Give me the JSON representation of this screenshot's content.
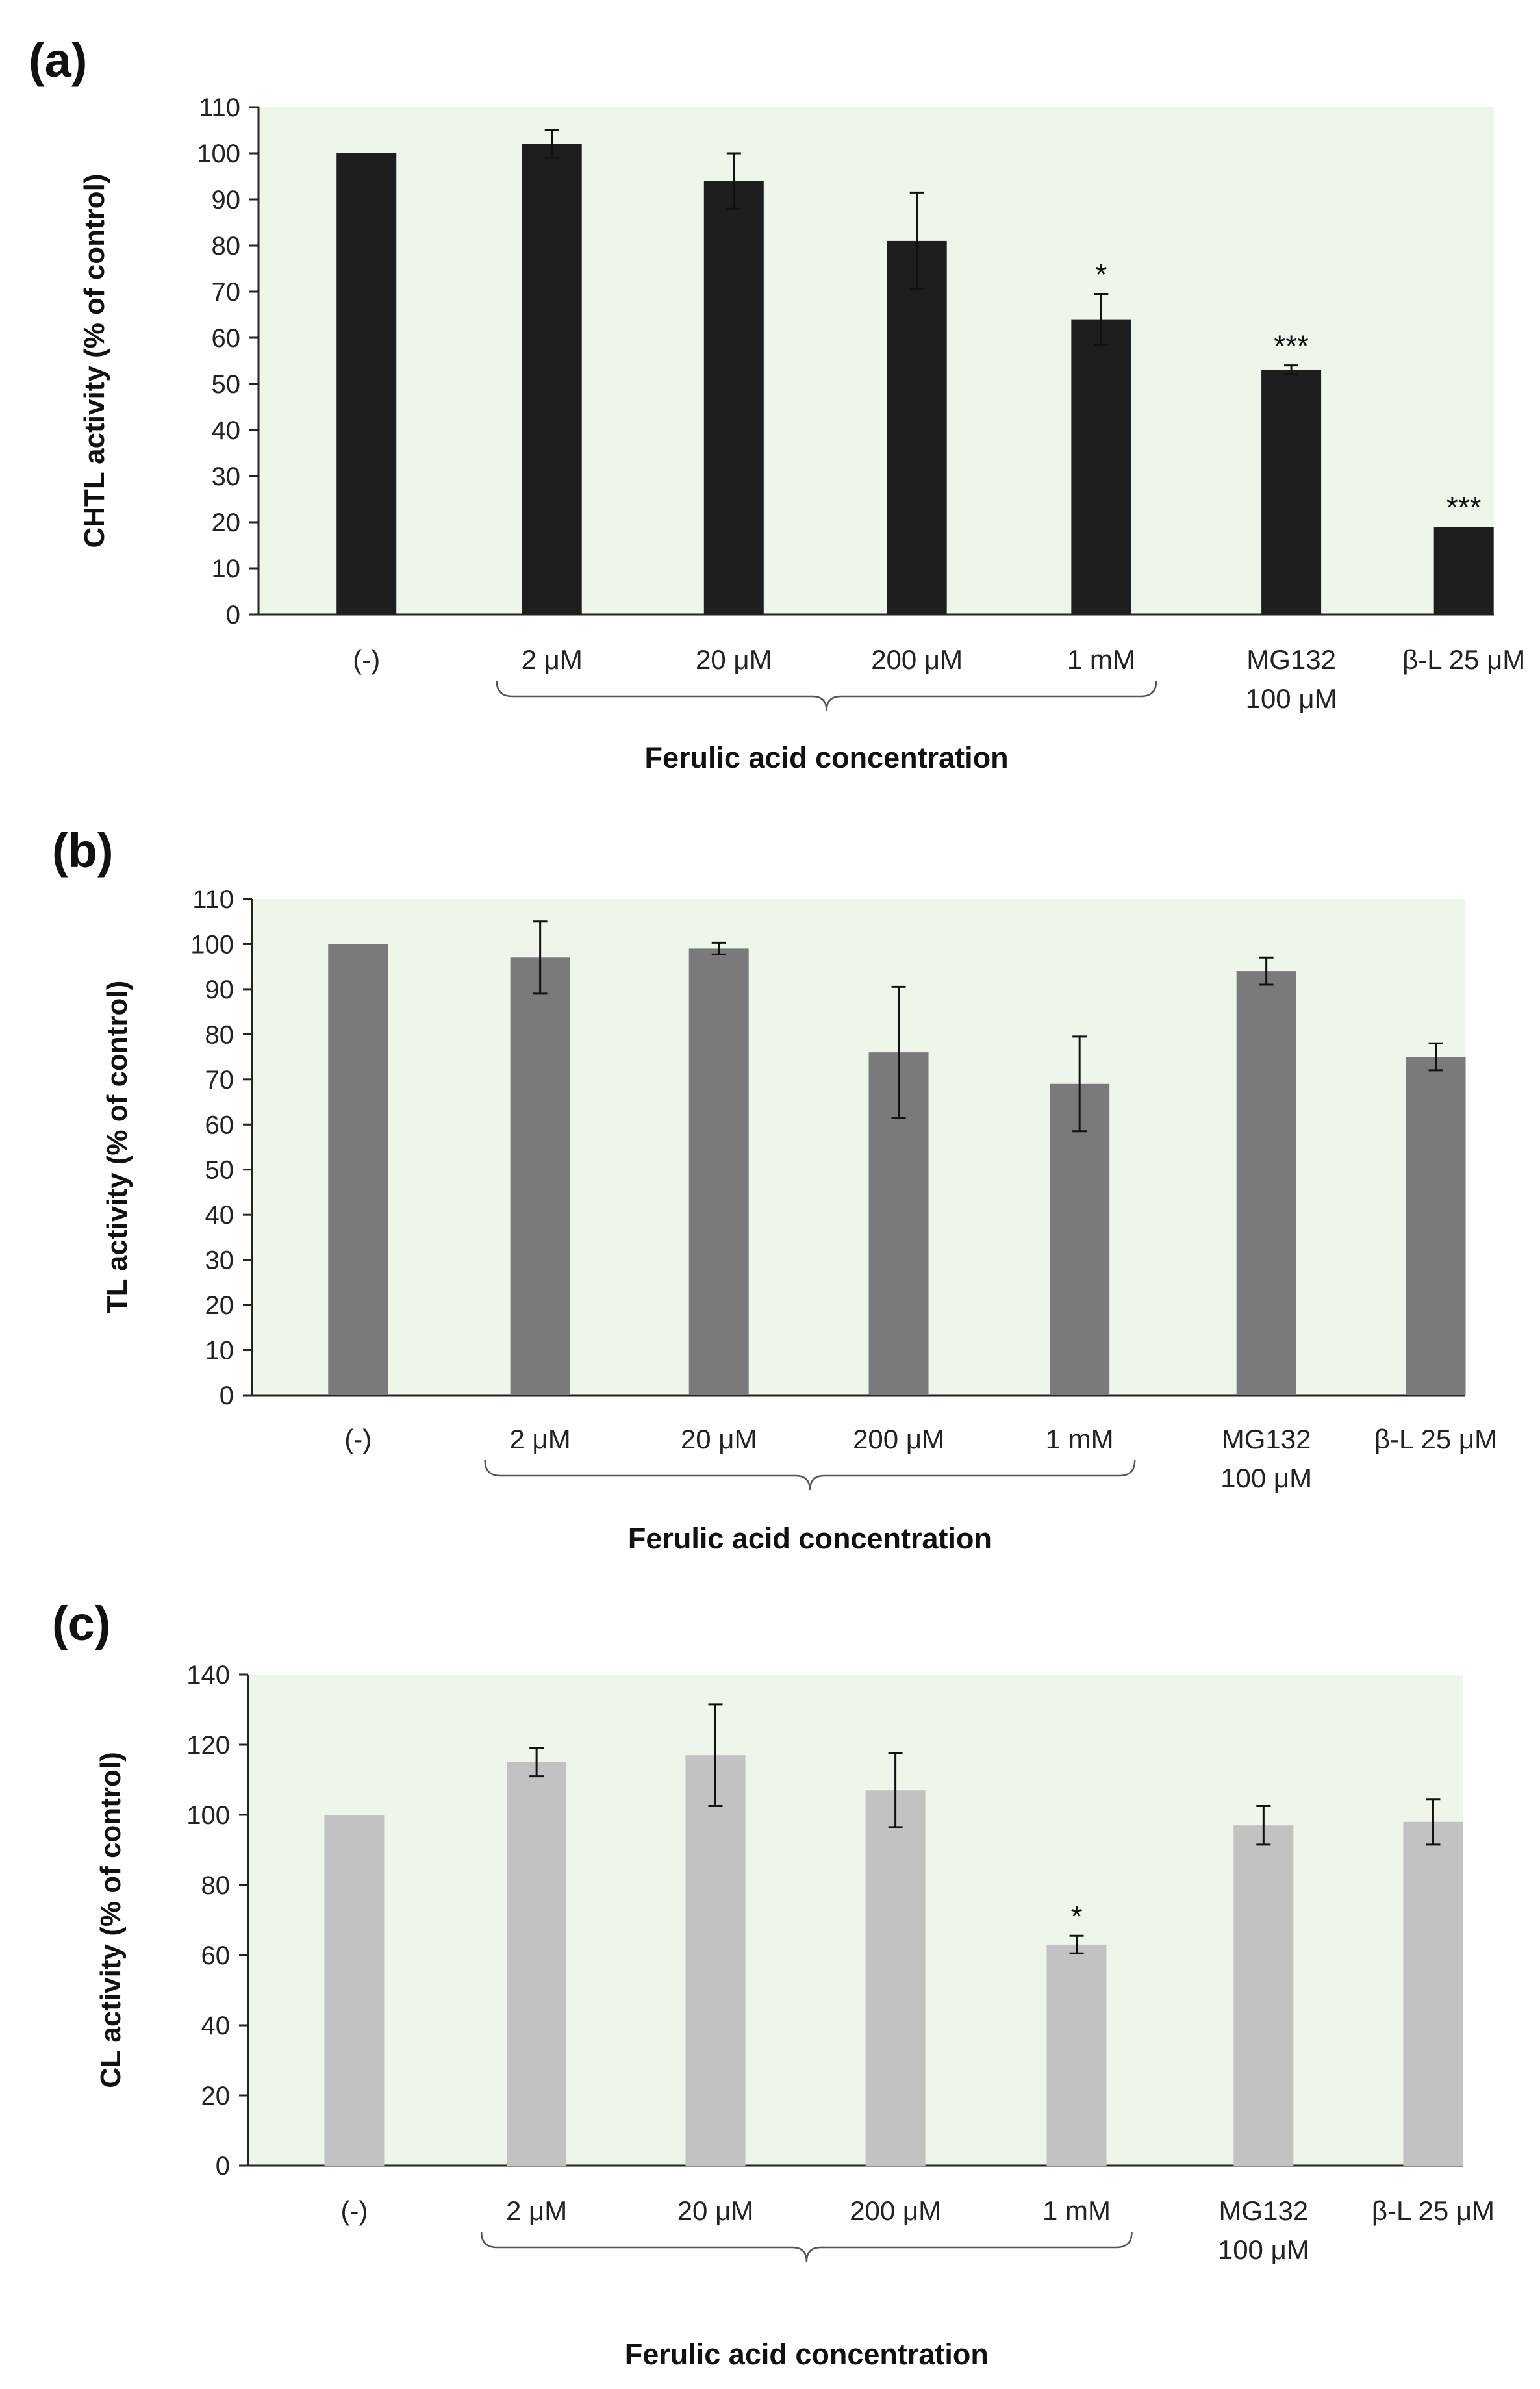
{
  "chart_data": [
    {
      "panel": "(a)",
      "type": "bar",
      "ylabel": "CHTL activity (% of control)",
      "ylim": [
        0,
        110
      ],
      "yticks": [
        0,
        10,
        20,
        30,
        40,
        50,
        60,
        70,
        80,
        90,
        100,
        110
      ],
      "grid": false,
      "bar_color": "#1e1e1e",
      "plot_bg": "#eef6ea",
      "group_label": "Ferulic acid concentration",
      "bars": [
        {
          "label": "(-)",
          "label2": "",
          "value": 100,
          "error": 0,
          "sig": ""
        },
        {
          "label": "2 μM",
          "label2": "",
          "value": 102,
          "error": 3,
          "sig": ""
        },
        {
          "label": "20 μM",
          "label2": "",
          "value": 94,
          "error": 6,
          "sig": ""
        },
        {
          "label": "200 μM",
          "label2": "",
          "value": 81,
          "error": 10.5,
          "sig": ""
        },
        {
          "label": "1 mM",
          "label2": "",
          "value": 64,
          "error": 5.5,
          "sig": "*"
        },
        {
          "label": "MG132",
          "label2": "100 μM",
          "value": 53,
          "error": 1,
          "sig": "***"
        },
        {
          "label": "β-L 25 μM",
          "label2": "",
          "value": 19,
          "error": 0,
          "sig": "***"
        }
      ]
    },
    {
      "panel": "(b)",
      "type": "bar",
      "ylabel": "TL activity (% of control)",
      "ylim": [
        0,
        110
      ],
      "yticks": [
        0,
        10,
        20,
        30,
        40,
        50,
        60,
        70,
        80,
        90,
        100,
        110
      ],
      "grid": false,
      "bar_color": "#7a7a7a",
      "plot_bg": "#eef6ea",
      "group_label": "Ferulic acid concentration",
      "bars": [
        {
          "label": "(-)",
          "label2": "",
          "value": 100,
          "error": 0,
          "sig": ""
        },
        {
          "label": "2 μM",
          "label2": "",
          "value": 97,
          "error": 8,
          "sig": ""
        },
        {
          "label": "20 μM",
          "label2": "",
          "value": 99,
          "error": 1.3,
          "sig": ""
        },
        {
          "label": "200 μM",
          "label2": "",
          "value": 76,
          "error": 14.5,
          "sig": ""
        },
        {
          "label": "1 mM",
          "label2": "",
          "value": 69,
          "error": 10.5,
          "sig": ""
        },
        {
          "label": "MG132",
          "label2": "100 μM",
          "value": 94,
          "error": 3,
          "sig": ""
        },
        {
          "label": "β-L 25 μM",
          "label2": "",
          "value": 75,
          "error": 3,
          "sig": ""
        }
      ]
    },
    {
      "panel": "(c)",
      "type": "bar",
      "ylabel": "CL activity (% of control)",
      "ylim": [
        0,
        140
      ],
      "yticks": [
        0,
        20,
        40,
        60,
        80,
        100,
        120,
        140
      ],
      "grid": false,
      "bar_color": "#c2c2c2",
      "plot_bg": "#eef6ea",
      "group_label": "Ferulic acid concentration",
      "bars": [
        {
          "label": "(-)",
          "label2": "",
          "value": 100,
          "error": 0,
          "sig": ""
        },
        {
          "label": "2 μM",
          "label2": "",
          "value": 115,
          "error": 4,
          "sig": ""
        },
        {
          "label": "20 μM",
          "label2": "",
          "value": 117,
          "error": 14.5,
          "sig": ""
        },
        {
          "label": "200 μM",
          "label2": "",
          "value": 107,
          "error": 10.5,
          "sig": ""
        },
        {
          "label": "1 mM",
          "label2": "",
          "value": 63,
          "error": 2.5,
          "sig": "*"
        },
        {
          "label": "MG132",
          "label2": "100 μM",
          "value": 97,
          "error": 5.5,
          "sig": ""
        },
        {
          "label": "β-L 25 μM",
          "label2": "",
          "value": 98,
          "error": 6.5,
          "sig": ""
        }
      ]
    }
  ]
}
